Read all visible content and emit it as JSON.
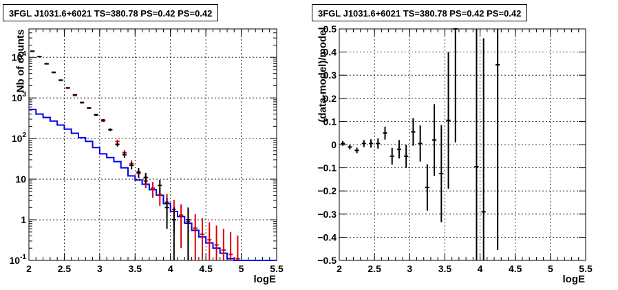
{
  "chart_data": [
    {
      "type": "histogram",
      "title": "3FGL J1031.6+6021 TS=380.78 PS=0.42 PS=0.42",
      "xlabel": "logE",
      "ylabel": "Nb of counts",
      "xlim": [
        2,
        5.5
      ],
      "ylim": [
        0.1,
        50000
      ],
      "yscale": "log",
      "grid": true,
      "x_ticks": [
        "2",
        "2.5",
        "3",
        "3.5",
        "4",
        "4.5",
        "5",
        "5.5"
      ],
      "y_ticks": [
        "10^{-1}",
        "1",
        "10",
        "10^{2}",
        "10^{3}",
        "10^{4}"
      ],
      "series": [
        {
          "color": "#0000ee",
          "style": "step",
          "x": [
            2.05,
            2.15,
            2.25,
            2.35,
            2.45,
            2.55,
            2.65,
            2.75,
            2.85,
            2.95,
            3.05,
            3.15,
            3.25,
            3.35,
            3.45,
            3.55,
            3.65,
            3.75,
            3.85,
            3.95,
            4.05,
            4.15,
            4.25,
            4.35,
            4.45,
            4.55,
            4.65,
            4.75,
            4.85,
            4.95,
            5.05,
            5.15,
            5.25,
            5.35,
            5.45
          ],
          "values": [
            520,
            400,
            330,
            270,
            215,
            170,
            135,
            105,
            85,
            60,
            42,
            34,
            27,
            19,
            12,
            9.5,
            7.5,
            5.5,
            4,
            2.5,
            1.6,
            1.2,
            0.82,
            0.55,
            0.38,
            0.27,
            0.2,
            0.15,
            0.11,
            0.1,
            0.1,
            0.1,
            0.1,
            0.1,
            0.1
          ]
        },
        {
          "color": "#dd0000",
          "style": "errorbar",
          "x": [
            2.05,
            2.15,
            2.25,
            2.35,
            2.45,
            2.55,
            2.65,
            2.75,
            2.85,
            2.95,
            3.05,
            3.15,
            3.25,
            3.35,
            3.45,
            3.55,
            3.65,
            3.75,
            3.85,
            3.95,
            4.05,
            4.15,
            4.25,
            4.35,
            4.45,
            4.55,
            4.65,
            4.75,
            4.85,
            4.95
          ],
          "values": [
            14000,
            10500,
            7000,
            4200,
            2700,
            1750,
            1150,
            780,
            560,
            390,
            270,
            165,
            85,
            45,
            24,
            14,
            9,
            6,
            4.2,
            2.7,
            1.8,
            1.3,
            0.9,
            0.62,
            0.44,
            0.32,
            0.24,
            0.18,
            0.14,
            0.11
          ],
          "errors": [
            120,
            100,
            80,
            60,
            50,
            40,
            33,
            27,
            23,
            19,
            16,
            12,
            9,
            7,
            5,
            3.5,
            3,
            2.5,
            2,
            1.6,
            1.3,
            1.1,
            0.9,
            0.75,
            0.65,
            0.55,
            0.48,
            0.42,
            0.36,
            0.3
          ]
        },
        {
          "color": "#000000",
          "style": "errorbar",
          "x": [
            2.05,
            2.15,
            2.25,
            2.35,
            2.45,
            2.55,
            2.65,
            2.75,
            2.85,
            2.95,
            3.05,
            3.15,
            3.25,
            3.35,
            3.45,
            3.55,
            3.65,
            3.85,
            3.95,
            4.05,
            4.25
          ],
          "values": [
            14200,
            10400,
            6900,
            4300,
            2750,
            1780,
            1200,
            760,
            570,
            380,
            285,
            165,
            72,
            40,
            22,
            15,
            11,
            7,
            2,
            1,
            1
          ],
          "errors": [
            120,
            100,
            80,
            65,
            52,
            42,
            35,
            28,
            24,
            19,
            17,
            13,
            8.5,
            6.3,
            4.7,
            3.9,
            3.3,
            2.6,
            1.4,
            1,
            1
          ]
        }
      ]
    },
    {
      "type": "scatter",
      "title": "3FGL J1031.6+6021 TS=380.78 PS=0.42 PS=0.42",
      "xlabel": "logE",
      "ylabel": "(data-model)/model",
      "xlim": [
        2,
        5.5
      ],
      "ylim": [
        -0.5,
        0.5
      ],
      "grid": true,
      "x_ticks": [
        "2",
        "2.5",
        "3",
        "3.5",
        "4",
        "4.5",
        "5",
        "5.5"
      ],
      "y_ticks": [
        "−0.5",
        "−0.4",
        "−0.3",
        "−0.2",
        "−0.1",
        "0",
        "0.1",
        "0.2",
        "0.3",
        "0.4",
        "0.5"
      ],
      "series": [
        {
          "color": "#000000",
          "style": "errorbar",
          "x": [
            2.05,
            2.15,
            2.25,
            2.35,
            2.45,
            2.55,
            2.65,
            2.75,
            2.85,
            2.95,
            3.05,
            3.15,
            3.25,
            3.35,
            3.45,
            3.55,
            3.65,
            3.95,
            4.05,
            4.25
          ],
          "values": [
            0.005,
            -0.01,
            -0.025,
            0.005,
            0.005,
            0.005,
            0.05,
            -0.05,
            -0.02,
            -0.05,
            0.055,
            0.005,
            -0.185,
            0.02,
            -0.125,
            0.105,
            0.5,
            -0.095,
            -0.29,
            0.345
          ],
          "errors": [
            0.01,
            0.01,
            0.012,
            0.015,
            0.018,
            0.022,
            0.028,
            0.036,
            0.04,
            0.05,
            0.06,
            0.078,
            0.1,
            0.155,
            0.21,
            0.295,
            0.49,
            0.7,
            0.75,
            0.8
          ]
        }
      ]
    }
  ]
}
